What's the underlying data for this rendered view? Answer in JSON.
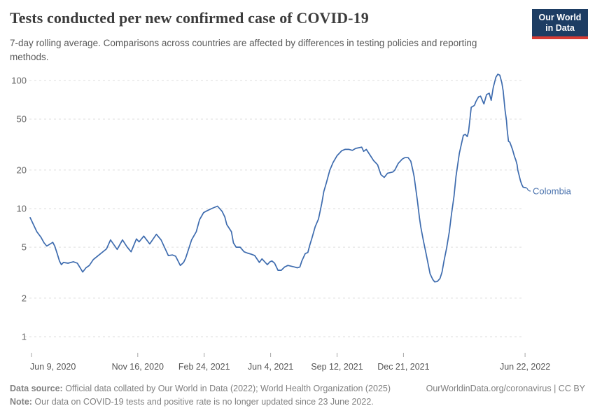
{
  "header": {
    "title": "Tests conducted per new confirmed case of COVID-19",
    "subtitle": "7-day rolling average. Comparisons across countries are affected by differences in testing policies and reporting methods.",
    "logo": {
      "line1": "Our World",
      "line2": "in Data"
    }
  },
  "footer": {
    "data_source_label": "Data source:",
    "data_source_text": " Official data collated by Our World in Data (2022); World Health Organization (2025)",
    "link_text": "OurWorldinData.org/coronavirus | CC BY",
    "note_label": "Note:",
    "note_text": " Our data on COVID-19 tests and positive rate is no longer updated since 23 June 2022."
  },
  "colors": {
    "series_line": "#3d6bae",
    "series_label": "#4c74ae",
    "gridline": "#dddddd",
    "tick_mark": "#a5a5a5",
    "y_tick_label": "#666666",
    "x_tick_label": "#555555",
    "logo_bg": "#1d3d63",
    "logo_stripe": "#d73c34"
  },
  "chart_data": {
    "type": "line",
    "title": "Tests conducted per new confirmed case of COVID-19",
    "y_scale": "log",
    "ylim": [
      1,
      150
    ],
    "grid": "dashed-horizontal",
    "legend_position": "end-of-line-label",
    "y_ticks": [
      1,
      2,
      5,
      10,
      20,
      50,
      100
    ],
    "x_axis": {
      "origin_date": "2020-06-09",
      "tick_day_offsets": [
        0,
        160,
        260,
        360,
        460,
        560,
        743
      ],
      "tick_labels": [
        "Jun 9, 2020",
        "Nov 16, 2020",
        "Feb 24, 2021",
        "Jun 4, 2021",
        "Sep 12, 2021",
        "Dec 21, 2021",
        "Jun 22, 2022"
      ]
    },
    "series": [
      {
        "name": "Colombia",
        "color": "#3d6bae",
        "points": [
          [
            -2,
            8.5
          ],
          [
            3,
            7.5
          ],
          [
            8,
            6.6
          ],
          [
            14,
            6.0
          ],
          [
            19,
            5.4
          ],
          [
            23,
            5.1
          ],
          [
            27,
            5.25
          ],
          [
            32,
            5.45
          ],
          [
            35,
            5.1
          ],
          [
            39,
            4.4
          ],
          [
            42,
            3.9
          ],
          [
            45,
            3.65
          ],
          [
            48,
            3.8
          ],
          [
            55,
            3.75
          ],
          [
            63,
            3.85
          ],
          [
            69,
            3.75
          ],
          [
            74,
            3.4
          ],
          [
            77,
            3.2
          ],
          [
            82,
            3.45
          ],
          [
            87,
            3.6
          ],
          [
            93,
            4.0
          ],
          [
            103,
            4.4
          ],
          [
            113,
            4.85
          ],
          [
            119,
            5.7
          ],
          [
            129,
            4.8
          ],
          [
            137,
            5.7
          ],
          [
            144,
            5.0
          ],
          [
            150,
            4.6
          ],
          [
            158,
            5.8
          ],
          [
            162,
            5.5
          ],
          [
            169,
            6.1
          ],
          [
            178,
            5.3
          ],
          [
            188,
            6.3
          ],
          [
            195,
            5.7
          ],
          [
            206,
            4.3
          ],
          [
            212,
            4.35
          ],
          [
            217,
            4.25
          ],
          [
            224,
            3.6
          ],
          [
            229,
            3.8
          ],
          [
            232,
            4.1
          ],
          [
            241,
            5.7
          ],
          [
            248,
            6.6
          ],
          [
            253,
            8.2
          ],
          [
            259,
            9.3
          ],
          [
            264,
            9.6
          ],
          [
            271,
            10.0
          ],
          [
            280,
            10.45
          ],
          [
            287,
            9.5
          ],
          [
            291,
            8.6
          ],
          [
            294,
            7.5
          ],
          [
            301,
            6.6
          ],
          [
            304,
            5.4
          ],
          [
            308,
            5.0
          ],
          [
            314,
            5.0
          ],
          [
            320,
            4.6
          ],
          [
            325,
            4.5
          ],
          [
            331,
            4.4
          ],
          [
            336,
            4.3
          ],
          [
            343,
            3.8
          ],
          [
            347,
            4.05
          ],
          [
            351,
            3.85
          ],
          [
            355,
            3.65
          ],
          [
            359,
            3.85
          ],
          [
            362,
            3.9
          ],
          [
            366,
            3.75
          ],
          [
            371,
            3.3
          ],
          [
            376,
            3.3
          ],
          [
            381,
            3.5
          ],
          [
            386,
            3.6
          ],
          [
            391,
            3.55
          ],
          [
            396,
            3.5
          ],
          [
            400,
            3.45
          ],
          [
            404,
            3.5
          ],
          [
            407,
            3.9
          ],
          [
            412,
            4.45
          ],
          [
            416,
            4.55
          ],
          [
            419,
            5.2
          ],
          [
            422,
            5.85
          ],
          [
            427,
            7.2
          ],
          [
            432,
            8.3
          ],
          [
            437,
            11.0
          ],
          [
            440,
            13.6
          ],
          [
            444,
            16.0
          ],
          [
            449,
            19.9
          ],
          [
            454,
            22.9
          ],
          [
            460,
            25.9
          ],
          [
            463,
            26.9
          ],
          [
            467,
            28.3
          ],
          [
            472,
            29.0
          ],
          [
            478,
            29.0
          ],
          [
            483,
            28.5
          ],
          [
            488,
            29.5
          ],
          [
            497,
            30.2
          ],
          [
            500,
            28.0
          ],
          [
            504,
            29.0
          ],
          [
            510,
            26.0
          ],
          [
            515,
            23.7
          ],
          [
            521,
            22.0
          ],
          [
            526,
            18.4
          ],
          [
            531,
            17.5
          ],
          [
            536,
            18.9
          ],
          [
            544,
            19.3
          ],
          [
            547,
            20.0
          ],
          [
            552,
            22.5
          ],
          [
            558,
            24.3
          ],
          [
            562,
            25.0
          ],
          [
            567,
            25.0
          ],
          [
            571,
            23.4
          ],
          [
            574,
            20.0
          ],
          [
            576,
            17.8
          ],
          [
            579,
            13.6
          ],
          [
            581,
            11.4
          ],
          [
            584,
            8.5
          ],
          [
            586,
            7.2
          ],
          [
            590,
            5.6
          ],
          [
            594,
            4.45
          ],
          [
            597,
            3.7
          ],
          [
            600,
            3.1
          ],
          [
            604,
            2.8
          ],
          [
            607,
            2.68
          ],
          [
            611,
            2.7
          ],
          [
            615,
            2.85
          ],
          [
            618,
            3.2
          ],
          [
            621,
            3.9
          ],
          [
            625,
            4.95
          ],
          [
            629,
            6.6
          ],
          [
            632,
            8.9
          ],
          [
            636,
            12.5
          ],
          [
            639,
            17.8
          ],
          [
            644,
            27.0
          ],
          [
            650,
            37.3
          ],
          [
            653,
            38.0
          ],
          [
            656,
            36.5
          ],
          [
            658,
            40.0
          ],
          [
            662,
            61.8
          ],
          [
            665,
            63.0
          ],
          [
            667,
            64.3
          ],
          [
            669,
            68.6
          ],
          [
            673,
            74.6
          ],
          [
            676,
            75.5
          ],
          [
            681,
            65.6
          ],
          [
            685,
            77.7
          ],
          [
            689,
            79.6
          ],
          [
            692,
            70.0
          ],
          [
            695,
            88.0
          ],
          [
            699,
            106.0
          ],
          [
            702,
            112.0
          ],
          [
            705,
            110.0
          ],
          [
            708,
            96.0
          ],
          [
            710,
            83.0
          ],
          [
            713,
            58.0
          ],
          [
            715,
            49.0
          ],
          [
            716,
            41.5
          ],
          [
            718,
            33.5
          ],
          [
            720,
            33.0
          ],
          [
            724,
            29.0
          ],
          [
            727,
            25.6
          ],
          [
            729,
            24.0
          ],
          [
            731,
            22.0
          ],
          [
            732,
            20.0
          ],
          [
            734,
            18.2
          ],
          [
            736,
            16.5
          ],
          [
            738,
            15.4
          ],
          [
            740,
            14.7
          ],
          [
            743,
            14.6
          ],
          [
            745,
            14.5
          ]
        ]
      }
    ]
  }
}
